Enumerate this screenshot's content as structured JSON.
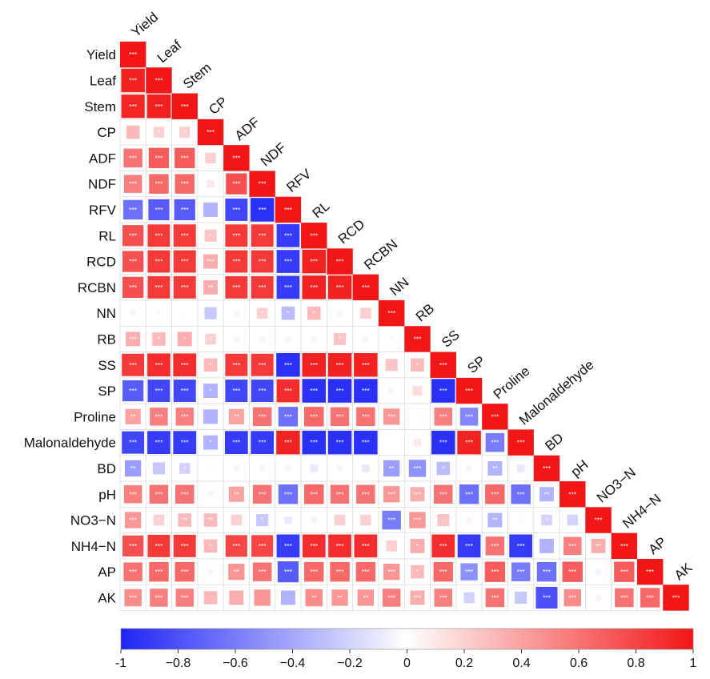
{
  "chart_data": {
    "type": "heatmap",
    "subtype": "lower-triangle correlation matrix",
    "variables": [
      "Yield",
      "Leaf",
      "Stem",
      "CP",
      "ADF",
      "NDF",
      "RFV",
      "RL",
      "RCD",
      "RCBN",
      "NN",
      "RB",
      "SS",
      "SP",
      "Proline",
      "Malonaldehyde",
      "BD",
      "pH",
      "NO3−N",
      "NH4−N",
      "AP",
      "AK"
    ],
    "correlations": [
      [
        1
      ],
      [
        0.95,
        1
      ],
      [
        0.93,
        0.96,
        1
      ],
      [
        0.3,
        0.2,
        0.2,
        1
      ],
      [
        0.6,
        0.7,
        0.7,
        0.2,
        1
      ],
      [
        0.55,
        0.65,
        0.65,
        0.1,
        0.75,
        1
      ],
      [
        -0.65,
        -0.75,
        -0.75,
        -0.35,
        -0.85,
        -0.95,
        1
      ],
      [
        0.75,
        0.85,
        0.85,
        0.25,
        0.85,
        0.85,
        -0.9,
        1
      ],
      [
        0.75,
        0.85,
        0.85,
        0.35,
        0.85,
        0.85,
        -0.9,
        0.95,
        1
      ],
      [
        0.75,
        0.85,
        0.85,
        0.35,
        0.85,
        0.85,
        -0.9,
        0.95,
        0.95,
        1
      ],
      [
        -0.05,
        0.03,
        0.02,
        -0.25,
        0.05,
        0.2,
        -0.3,
        0.3,
        0.05,
        0.2,
        1
      ],
      [
        0.35,
        0.3,
        0.35,
        0.2,
        0.05,
        0.05,
        -0.05,
        0.05,
        0.25,
        0.05,
        0.03,
        1
      ],
      [
        0.85,
        0.9,
        0.9,
        0.3,
        0.85,
        0.85,
        -0.95,
        0.95,
        0.95,
        0.95,
        0.25,
        0.3,
        1
      ],
      [
        -0.75,
        -0.85,
        -0.85,
        -0.35,
        -0.85,
        -0.85,
        0.9,
        -0.95,
        -0.95,
        -0.95,
        -0.05,
        0.15,
        -0.95,
        1
      ],
      [
        0.4,
        0.55,
        0.55,
        -0.35,
        0.4,
        0.6,
        -0.65,
        0.65,
        0.6,
        0.6,
        0.45,
        0.02,
        0.55,
        -0.55,
        1
      ],
      [
        -0.85,
        -0.9,
        -0.9,
        -0.35,
        -0.9,
        -0.9,
        0.95,
        -0.95,
        -0.95,
        -0.95,
        0.0,
        0.1,
        -0.95,
        0.95,
        -0.6,
        1
      ],
      [
        -0.45,
        -0.25,
        -0.2,
        0.02,
        -0.05,
        -0.05,
        -0.05,
        -0.1,
        -0.05,
        -0.1,
        -0.45,
        -0.5,
        -0.3,
        -0.05,
        -0.35,
        -0.1,
        1
      ],
      [
        0.55,
        0.6,
        0.6,
        0.05,
        0.4,
        0.6,
        -0.65,
        0.65,
        0.6,
        0.6,
        0.45,
        0.35,
        0.6,
        -0.65,
        0.65,
        -0.65,
        -0.35,
        1
      ],
      [
        0.45,
        0.2,
        0.3,
        0.3,
        0.2,
        -0.25,
        -0.1,
        -0.05,
        0.2,
        0.2,
        -0.6,
        0.45,
        0.25,
        0.05,
        -0.35,
        0.03,
        -0.2,
        -0.2,
        1
      ],
      [
        0.75,
        0.85,
        0.85,
        0.3,
        0.8,
        0.8,
        -0.9,
        0.9,
        0.9,
        0.9,
        0.2,
        0.35,
        0.9,
        -0.9,
        0.6,
        -0.9,
        -0.35,
        0.55,
        0.35,
        1
      ],
      [
        0.6,
        0.65,
        0.65,
        0.05,
        0.45,
        0.6,
        -0.75,
        0.65,
        0.65,
        0.65,
        0.45,
        0.3,
        0.65,
        -0.5,
        0.7,
        -0.6,
        -0.65,
        0.7,
        -0.05,
        0.7,
        1
      ],
      [
        0.5,
        0.55,
        0.55,
        0.3,
        0.35,
        0.45,
        -0.35,
        0.5,
        0.45,
        0.45,
        0.55,
        0.35,
        0.55,
        -0.2,
        0.6,
        -0.25,
        -0.8,
        0.5,
        0.05,
        0.6,
        0.65,
        1
      ]
    ],
    "significance": [
      [
        "***"
      ],
      [
        "***",
        "***"
      ],
      [
        "***",
        "***",
        "***"
      ],
      [
        "",
        "*",
        "*",
        "***"
      ],
      [
        "***",
        "***",
        "***",
        "",
        "***"
      ],
      [
        "***",
        "***",
        "***",
        "",
        "***",
        "***"
      ],
      [
        "***",
        "***",
        "***",
        "",
        "***",
        "***",
        "***"
      ],
      [
        "***",
        "***",
        "***",
        "*",
        "***",
        "***",
        "***",
        "***"
      ],
      [
        "***",
        "***",
        "***",
        "***",
        "***",
        "***",
        "***",
        "***",
        "***"
      ],
      [
        "***",
        "***",
        "***",
        "**",
        "***",
        "***",
        "***",
        "***",
        "***",
        "***"
      ],
      [
        "",
        "",
        "",
        "",
        "",
        "*",
        "*",
        "*",
        "",
        "",
        "***"
      ],
      [
        "***",
        "*",
        "*",
        "*",
        "",
        "",
        "",
        "",
        "*",
        "",
        "",
        "***"
      ],
      [
        "***",
        "***",
        "***",
        "*",
        "***",
        "***",
        "***",
        "***",
        "***",
        "***",
        "",
        "*",
        "***"
      ],
      [
        "***",
        "***",
        "***",
        "*",
        "***",
        "***",
        "***",
        "***",
        "***",
        "***",
        "",
        "",
        "***",
        "***"
      ],
      [
        "**",
        "***",
        "***",
        "",
        "**",
        "***",
        "***",
        "***",
        "***",
        "***",
        "***",
        "",
        "***",
        "***",
        "***"
      ],
      [
        "***",
        "***",
        "***",
        "*",
        "***",
        "***",
        "***",
        "***",
        "***",
        "***",
        "",
        "",
        "***",
        "***",
        "***",
        "***"
      ],
      [
        "**",
        "",
        "*",
        "",
        "",
        "",
        "",
        "",
        "",
        "",
        "**",
        "***",
        "*",
        "",
        "**",
        "",
        "***"
      ],
      [
        "***",
        "***",
        "***",
        "",
        "**",
        "***",
        "***",
        "***",
        "***",
        "***",
        "***",
        "***",
        "***",
        "***",
        "***",
        "***",
        "**",
        "***"
      ],
      [
        "***",
        "*",
        "**",
        "**",
        "",
        "*",
        "",
        "",
        "",
        "",
        "***",
        "***",
        "",
        "",
        "**",
        "",
        "*",
        "",
        "***"
      ],
      [
        "***",
        "***",
        "***",
        "*",
        "***",
        "***",
        "***",
        "***",
        "***",
        "***",
        "",
        "*",
        "***",
        "***",
        "***",
        "***",
        "",
        "***",
        "**",
        "***"
      ],
      [
        "***",
        "***",
        "***",
        "",
        "**",
        "***",
        "***",
        "***",
        "***",
        "***",
        "***",
        "*",
        "***",
        "***",
        "***",
        "***",
        "***",
        "***",
        "",
        "***",
        "***"
      ],
      [
        "***",
        "***",
        "***",
        "",
        "",
        "",
        "",
        "**",
        "**",
        "**",
        "***",
        "***",
        "***",
        "",
        "***",
        "",
        "***",
        "***",
        "",
        "***",
        "***",
        "***"
      ]
    ],
    "color_scale": {
      "min": -1,
      "max": 1,
      "low": "#1f25f5",
      "mid": "#ffffff",
      "high": "#f21616"
    },
    "colorbar_ticks": [
      "-1",
      "−0.8",
      "−0.6",
      "−0.4",
      "−0.2",
      "0",
      "0.2",
      "0.4",
      "0.6",
      "0.8",
      "1"
    ],
    "legend": "bottom"
  }
}
